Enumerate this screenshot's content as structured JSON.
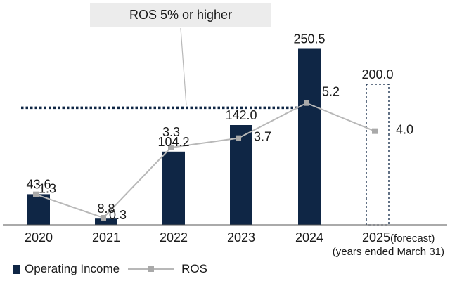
{
  "colors": {
    "bar": "#0f2645",
    "line": "#b8b8b8",
    "marker": "#a9a9a9",
    "target_line": "#0f2645",
    "text": "#1a1a1a",
    "forecast_box": "#0f2645"
  },
  "callout": {
    "text": "ROS 5% or higher"
  },
  "note": "(years ended March 31)",
  "legend": {
    "bar_label": "Operating Income",
    "line_label": "ROS"
  },
  "chart_data": {
    "type": "bar",
    "categories": [
      "2020",
      "2021",
      "2022",
      "2023",
      "2024",
      "2025(forecast)"
    ],
    "series": [
      {
        "name": "Operating Income",
        "type": "bar",
        "values": [
          43.6,
          8.8,
          104.2,
          142.0,
          250.5,
          200.0
        ],
        "labels": [
          "43.6",
          "8.8",
          "104.2",
          "142.0",
          "250.5",
          "200.0"
        ]
      },
      {
        "name": "ROS",
        "type": "line",
        "values": [
          1.3,
          0.3,
          3.3,
          3.7,
          5.2,
          4.0
        ],
        "labels": [
          "1.3",
          "0.3",
          "3.3",
          "3.7",
          "5.2",
          "4.0"
        ]
      }
    ],
    "forecast_category": "2025(forecast)",
    "target_ros": 5.0,
    "ylim_bar": [
      0,
      270
    ],
    "ylim_ros": [
      0,
      8.1
    ],
    "grid": false,
    "legend_position": "bottom-left"
  }
}
